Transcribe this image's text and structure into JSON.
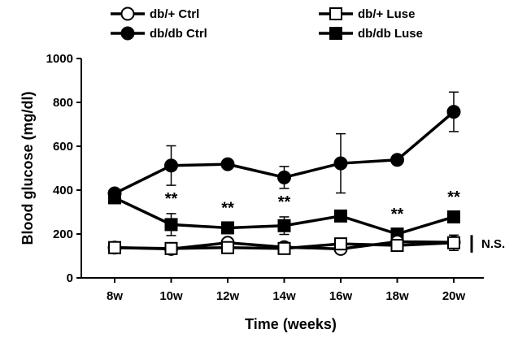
{
  "chart_data": {
    "type": "line",
    "title": "",
    "xlabel": "Time (weeks)",
    "ylabel": "Blood glucose (mg/dl)",
    "ylim": [
      0,
      1000
    ],
    "yticks": [
      0,
      200,
      400,
      600,
      800,
      1000
    ],
    "categories": [
      "8w",
      "10w",
      "12w",
      "14w",
      "16w",
      "18w",
      "20w"
    ],
    "grid": false,
    "legend_position": "top",
    "series": [
      {
        "name": "db/+  Ctrl",
        "marker": "circle-open",
        "values": [
          138,
          132,
          160,
          140,
          132,
          165,
          162
        ],
        "errors": [
          0,
          0,
          0,
          0,
          0,
          0,
          0
        ]
      },
      {
        "name": "db/db Ctrl",
        "marker": "circle-filled",
        "values": [
          385,
          512,
          518,
          458,
          522,
          538,
          757
        ],
        "errors": [
          0,
          90,
          0,
          50,
          135,
          0,
          90
        ]
      },
      {
        "name": "db/+ Luse",
        "marker": "square-open",
        "values": [
          138,
          134,
          138,
          134,
          155,
          148,
          160
        ],
        "errors": [
          0,
          0,
          0,
          0,
          0,
          0,
          35
        ]
      },
      {
        "name": "db/db Luse",
        "marker": "square-filled",
        "values": [
          365,
          243,
          228,
          238,
          282,
          200,
          278
        ],
        "errors": [
          0,
          50,
          0,
          40,
          0,
          0,
          0
        ]
      }
    ],
    "annotations": [
      {
        "category": "10w",
        "text": "**"
      },
      {
        "category": "12w",
        "text": "**"
      },
      {
        "category": "14w",
        "text": "**"
      },
      {
        "category": "18w",
        "text": "**"
      },
      {
        "category": "20w",
        "text": "**"
      }
    ],
    "side_label": "N.S."
  }
}
